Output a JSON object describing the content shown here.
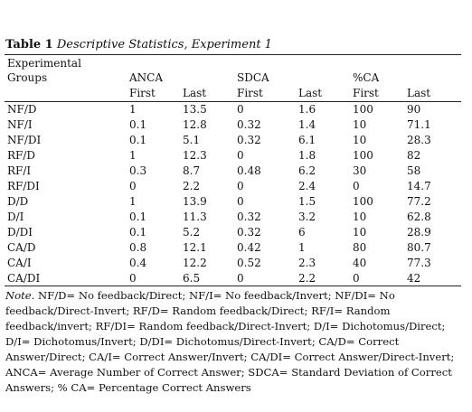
{
  "caption": {
    "label": "Table 1",
    "title": "Descriptive Statistics, Experiment 1"
  },
  "table": {
    "group_label": [
      "Experimental",
      "Groups"
    ],
    "groups": [
      "ANCA",
      "SDCA",
      "%CA"
    ],
    "subheaders": [
      "First",
      "Last",
      "First",
      "Last",
      "First",
      "Last"
    ],
    "rows": [
      [
        "NF/D",
        "1",
        "13.5",
        "0",
        "1.6",
        "100",
        "90"
      ],
      [
        "NF/I",
        "0.1",
        "12.8",
        "0.32",
        "1.4",
        "10",
        "71.1"
      ],
      [
        "NF/DI",
        "0.1",
        "5.1",
        "0.32",
        "6.1",
        "10",
        "28.3"
      ],
      [
        "RF/D",
        "1",
        "12.3",
        "0",
        "1.8",
        "100",
        "82"
      ],
      [
        "RF/I",
        "0.3",
        "8.7",
        "0.48",
        "6.2",
        "30",
        "58"
      ],
      [
        "RF/DI",
        "0",
        "2.2",
        "0",
        "2.4",
        "0",
        "14.7"
      ],
      [
        "D/D",
        "1",
        "13.9",
        "0",
        "1.5",
        "100",
        "77.2"
      ],
      [
        "D/I",
        "0.1",
        "11.3",
        "0.32",
        "3.2",
        "10",
        "62.8"
      ],
      [
        "D/DI",
        "0.1",
        "5.2",
        "0.32",
        "6",
        "10",
        "28.9"
      ],
      [
        "CA/D",
        "0.8",
        "12.1",
        "0.42",
        "1",
        "80",
        "80.7"
      ],
      [
        "CA/I",
        "0.4",
        "12.2",
        "0.52",
        "2.3",
        "40",
        "77.3"
      ],
      [
        "CA/DI",
        "0",
        "6.5",
        "0",
        "2.2",
        "0",
        "42"
      ]
    ]
  },
  "note": {
    "label": "Note.",
    "text": "NF/D= No feedback/Direct; NF/I= No feedback/Invert; NF/DI= No feedback/Direct-Invert; RF/D= Random feedback/Direct; RF/I= Random feedback/invert; RF/DI= Random feedback/Direct-Invert; D/I= Dichotomus/Direct; D/I= Dichotomus/Invert; D/DI= Dichotomus/Direct-Invert; CA/D= Correct Answer/Direct; CA/I= Correct Answer/Invert; CA/DI= Correct Answer/Direct-Invert; ANCA= Average Number of Correct Answer; SDCA= Standard Deviation of Correct Answers; % CA= Percentage Correct Answers"
  }
}
